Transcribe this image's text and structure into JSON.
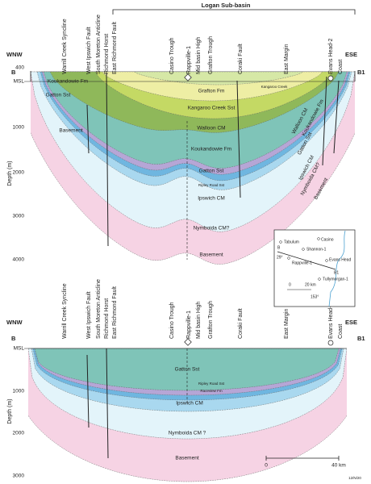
{
  "header": {
    "title": "Logan Sub-basin"
  },
  "sections": [
    {
      "west": "WNW",
      "east": "ESE",
      "left_point": "B",
      "right_point": "B1",
      "depth_axis": {
        "title": "Depth (m)",
        "ticks": [
          "400",
          "MSL",
          "1000",
          "2000",
          "3000",
          "4000"
        ]
      },
      "features": [
        "Warrill Creek Syncline",
        "West Ipswich Fault",
        "South Moreton Anticline",
        "Richmond Horst",
        "East Richmond Fault",
        "Casino Trough",
        "Rappville-1",
        "Mid basin High",
        "Grafton Trough",
        "Coraki Fault",
        "East Margin",
        "Evans Head-2",
        "Coast"
      ],
      "units": [
        "Koukandowie Fm",
        "Gatton Sst",
        "Basement",
        "Grafton Fm",
        "Kangaroo Creek",
        "Kangaroo Creek Sst",
        "Walloon CM",
        "Koukandowie Fm",
        "Gatton Sst",
        "Ripley Road Sst",
        "Ipswich CM",
        "Nymboida CM?",
        "Basement",
        "Walloon CM",
        "Koukandowie Fm",
        "Gatton Sst",
        "Ipswich CM",
        "Nymboida CM?",
        "Basement"
      ]
    },
    {
      "west": "WNW",
      "east": "ESE",
      "left_point": "B",
      "right_point": "B1",
      "depth_axis": {
        "title": "Depth (m)",
        "ticks": [
          "MSL",
          "1000",
          "2000",
          "3000"
        ]
      },
      "features": [
        "Warrill Creek Syncline",
        "West Ipswich Fault",
        "South Moreton Anticline",
        "Richmond Horst",
        "East Richmond Fault",
        "Casino Trough",
        "Rappville-1",
        "Mid basin High",
        "Grafton Trough",
        "Coraki Fault",
        "East Margin",
        "Evans Head-2",
        "Coast"
      ],
      "units": [
        "Gatton Sst",
        "Ripley Road Sst",
        "Raceview Fm",
        "Ipswich CM",
        "Nymboida CM ?",
        "Basement"
      ],
      "scale_bar": [
        "0",
        "40 km"
      ]
    }
  ],
  "inset_map": {
    "places": [
      "Tabulum",
      "Casino",
      "Shannon-1",
      "Rappville-1",
      "Evans Head",
      "B1",
      "B",
      "29°",
      "0",
      "20 km",
      "Tullymorgan-1",
      "153°"
    ]
  },
  "figure_id": "12/N/20"
}
